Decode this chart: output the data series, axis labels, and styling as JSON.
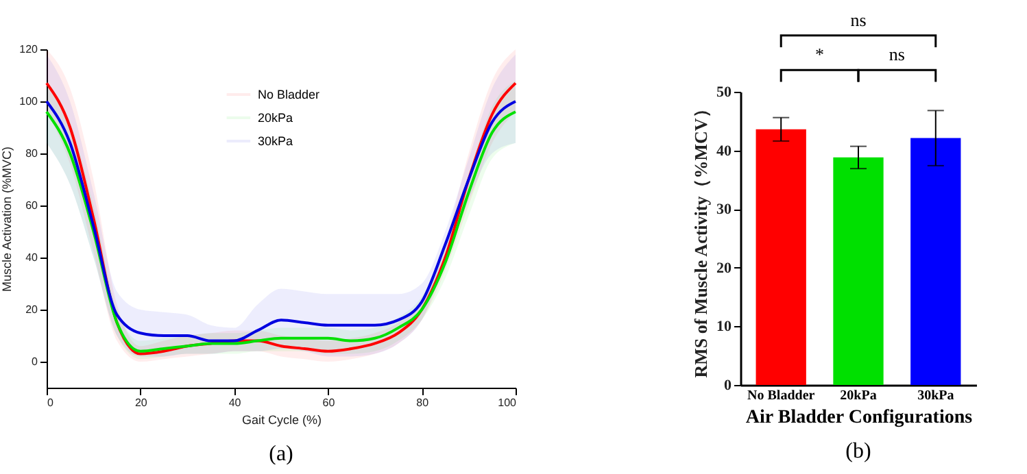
{
  "chart_data": [
    {
      "type": "line",
      "title": "(a)",
      "xlabel": "Gait Cycle (%)",
      "ylabel": "Muscle Activation (%MVC)",
      "xlim": [
        0,
        100
      ],
      "xticks": [
        0,
        20,
        40,
        60,
        80,
        100
      ],
      "ylim": [
        -10,
        120
      ],
      "yticks": [
        0,
        20,
        40,
        60,
        80,
        100,
        120
      ],
      "grid": false,
      "legend": "top",
      "x": [
        0,
        5,
        10,
        15,
        20,
        25,
        30,
        35,
        40,
        45,
        50,
        55,
        60,
        65,
        70,
        75,
        80,
        85,
        90,
        95,
        100
      ],
      "series": [
        {
          "name": "No Bladder",
          "color": "#ff0000",
          "values": [
            107,
            90,
            55,
            15,
            3,
            4,
            6,
            7,
            8,
            8,
            6,
            5,
            4,
            5,
            7,
            11,
            20,
            40,
            70,
            95,
            107
          ],
          "lower": [
            96,
            76,
            42,
            8,
            0,
            1,
            2,
            3,
            4,
            4,
            2,
            1,
            0,
            1,
            3,
            7,
            16,
            35,
            60,
            84,
            96
          ],
          "upper": [
            120,
            105,
            70,
            22,
            6,
            8,
            10,
            11,
            12,
            12,
            10,
            9,
            8,
            9,
            11,
            15,
            24,
            46,
            80,
            108,
            120
          ]
        },
        {
          "name": "20kPa",
          "color": "#00e000",
          "values": [
            96,
            80,
            50,
            15,
            4,
            5,
            6,
            7,
            7,
            8,
            9,
            9,
            9,
            8,
            9,
            13,
            20,
            38,
            65,
            88,
            96
          ],
          "lower": [
            84,
            68,
            40,
            10,
            1,
            2,
            3,
            3,
            3,
            4,
            4,
            4,
            3,
            3,
            4,
            8,
            16,
            32,
            56,
            78,
            84
          ],
          "upper": [
            108,
            92,
            60,
            20,
            8,
            9,
            10,
            11,
            11,
            12,
            13,
            13,
            13,
            12,
            13,
            17,
            25,
            44,
            72,
            98,
            108
          ]
        },
        {
          "name": "30kPa",
          "color": "#0000e0",
          "values": [
            100,
            84,
            52,
            18,
            11,
            10,
            10,
            8,
            8,
            12,
            16,
            15,
            14,
            14,
            14,
            16,
            23,
            45,
            70,
            92,
            100
          ],
          "lower": [
            84,
            68,
            40,
            10,
            2,
            2,
            3,
            3,
            4,
            4,
            5,
            4,
            2,
            2,
            3,
            7,
            16,
            38,
            62,
            80,
            84
          ],
          "upper": [
            118,
            100,
            65,
            27,
            20,
            19,
            18,
            14,
            13,
            22,
            28,
            27,
            26,
            26,
            26,
            26,
            30,
            50,
            78,
            105,
            118
          ]
        }
      ]
    },
    {
      "type": "bar",
      "title": "(b)",
      "xlabel": "Air Bladder Configurations",
      "ylabel": "RMS of Muscle Activity（%MCV）",
      "categories": [
        "No Bladder",
        "20kPa",
        "30kPa"
      ],
      "values": [
        43.6,
        38.8,
        42.1
      ],
      "colors": [
        "#ff0000",
        "#00e000",
        "#0000ff"
      ],
      "errors": [
        2,
        1.9,
        4.7
      ],
      "ylim": [
        0,
        50
      ],
      "yticks": [
        0,
        10,
        20,
        30,
        40,
        50
      ],
      "grid": false,
      "annotations": [
        "ns",
        "*",
        "ns"
      ]
    }
  ]
}
